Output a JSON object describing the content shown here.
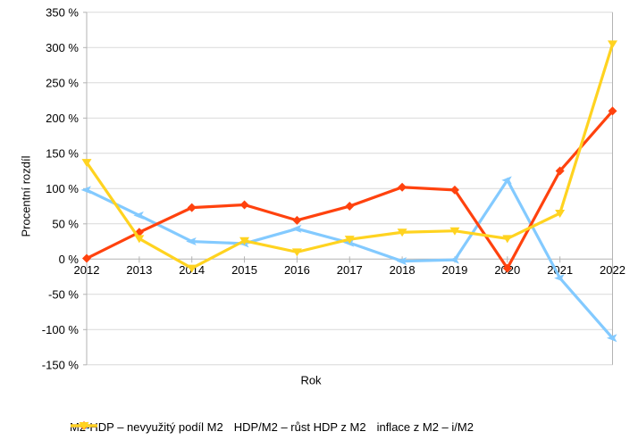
{
  "chart_data": {
    "type": "line",
    "title": "",
    "xlabel": "Rok",
    "ylabel": "Procentní rozdíl",
    "categories": [
      "2012",
      "2013",
      "2014",
      "2015",
      "2016",
      "2017",
      "2018",
      "2019",
      "2020",
      "2021",
      "2022"
    ],
    "y_ticks": [
      350,
      300,
      250,
      200,
      150,
      100,
      50,
      0,
      -50,
      -100,
      -150
    ],
    "y_tick_suffix": " %",
    "ylim": [
      -150,
      350
    ],
    "grid": true,
    "legend_position": "bottom",
    "colors": {
      "background": "#ffffff",
      "gridline": "#d9d9d9",
      "axis": "#b3b3b3",
      "text": "#000000"
    },
    "series": [
      {
        "name": "M2-HDP – nevyužitý podíl M2",
        "color": "#83CAFF",
        "marker": "arrow-left",
        "values": [
          98,
          62,
          25,
          22,
          43,
          23,
          -3,
          -1,
          112,
          -27,
          -112
        ]
      },
      {
        "name": "HDP/M2 – růst HDP z M2",
        "color": "#FF420E",
        "marker": "diamond",
        "values": [
          1,
          38,
          73,
          77,
          55,
          75,
          102,
          98,
          -13,
          125,
          210
        ]
      },
      {
        "name": "inflace z M2 – i/M2",
        "color": "#FFD320",
        "marker": "triangle-down",
        "values": [
          137,
          29,
          -13,
          26,
          10,
          28,
          38,
          40,
          29,
          65,
          305
        ]
      }
    ]
  }
}
